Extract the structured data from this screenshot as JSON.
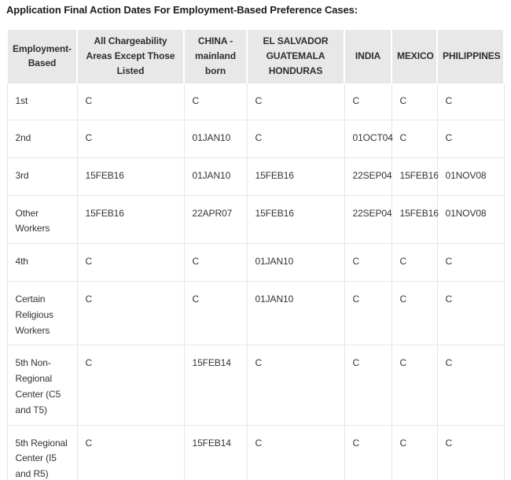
{
  "page": {
    "title": "Application Final Action Dates For Employment-Based Preference Cases:"
  },
  "table": {
    "columns": [
      "Employment-Based",
      "All Chargeability Areas Except Those Listed",
      "CHINA - mainland born",
      "EL SALVADOR GUATEMALA HONDURAS",
      "INDIA",
      "MEXICO",
      "PHILIPPINES"
    ],
    "rows": [
      {
        "category": "1st",
        "values": [
          "C",
          "C",
          "C",
          "C",
          "C",
          "C"
        ]
      },
      {
        "category": "2nd",
        "values": [
          "C",
          "01JAN10",
          "C",
          "01OCT04",
          "C",
          "C"
        ]
      },
      {
        "category": "3rd",
        "values": [
          "15FEB16",
          "01JAN10",
          "15FEB16",
          "22SEP04",
          "15FEB16",
          "01NOV08"
        ]
      },
      {
        "category": "Other Workers",
        "values": [
          "15FEB16",
          "22APR07",
          "15FEB16",
          "22SEP04",
          "15FEB16",
          "01NOV08"
        ]
      },
      {
        "category": "4th",
        "values": [
          "C",
          "C",
          "01JAN10",
          "C",
          "C",
          "C"
        ]
      },
      {
        "category": "Certain Religious Workers",
        "values": [
          "C",
          "C",
          "01JAN10",
          "C",
          "C",
          "C"
        ]
      },
      {
        "category": "5th Non-Regional Center (C5 and T5)",
        "values": [
          "C",
          "15FEB14",
          "C",
          "C",
          "C",
          "C"
        ]
      },
      {
        "category": "5th Regional Center (I5 and R5)",
        "values": [
          "C",
          "15FEB14",
          "C",
          "C",
          "C",
          "C"
        ]
      }
    ],
    "colors": {
      "header_bg": "#e8e8e8",
      "body_border": "#e6e6e6",
      "header_text": "#2e2e2e",
      "body_text": "#333333",
      "title_text": "#1c1c1c"
    }
  }
}
